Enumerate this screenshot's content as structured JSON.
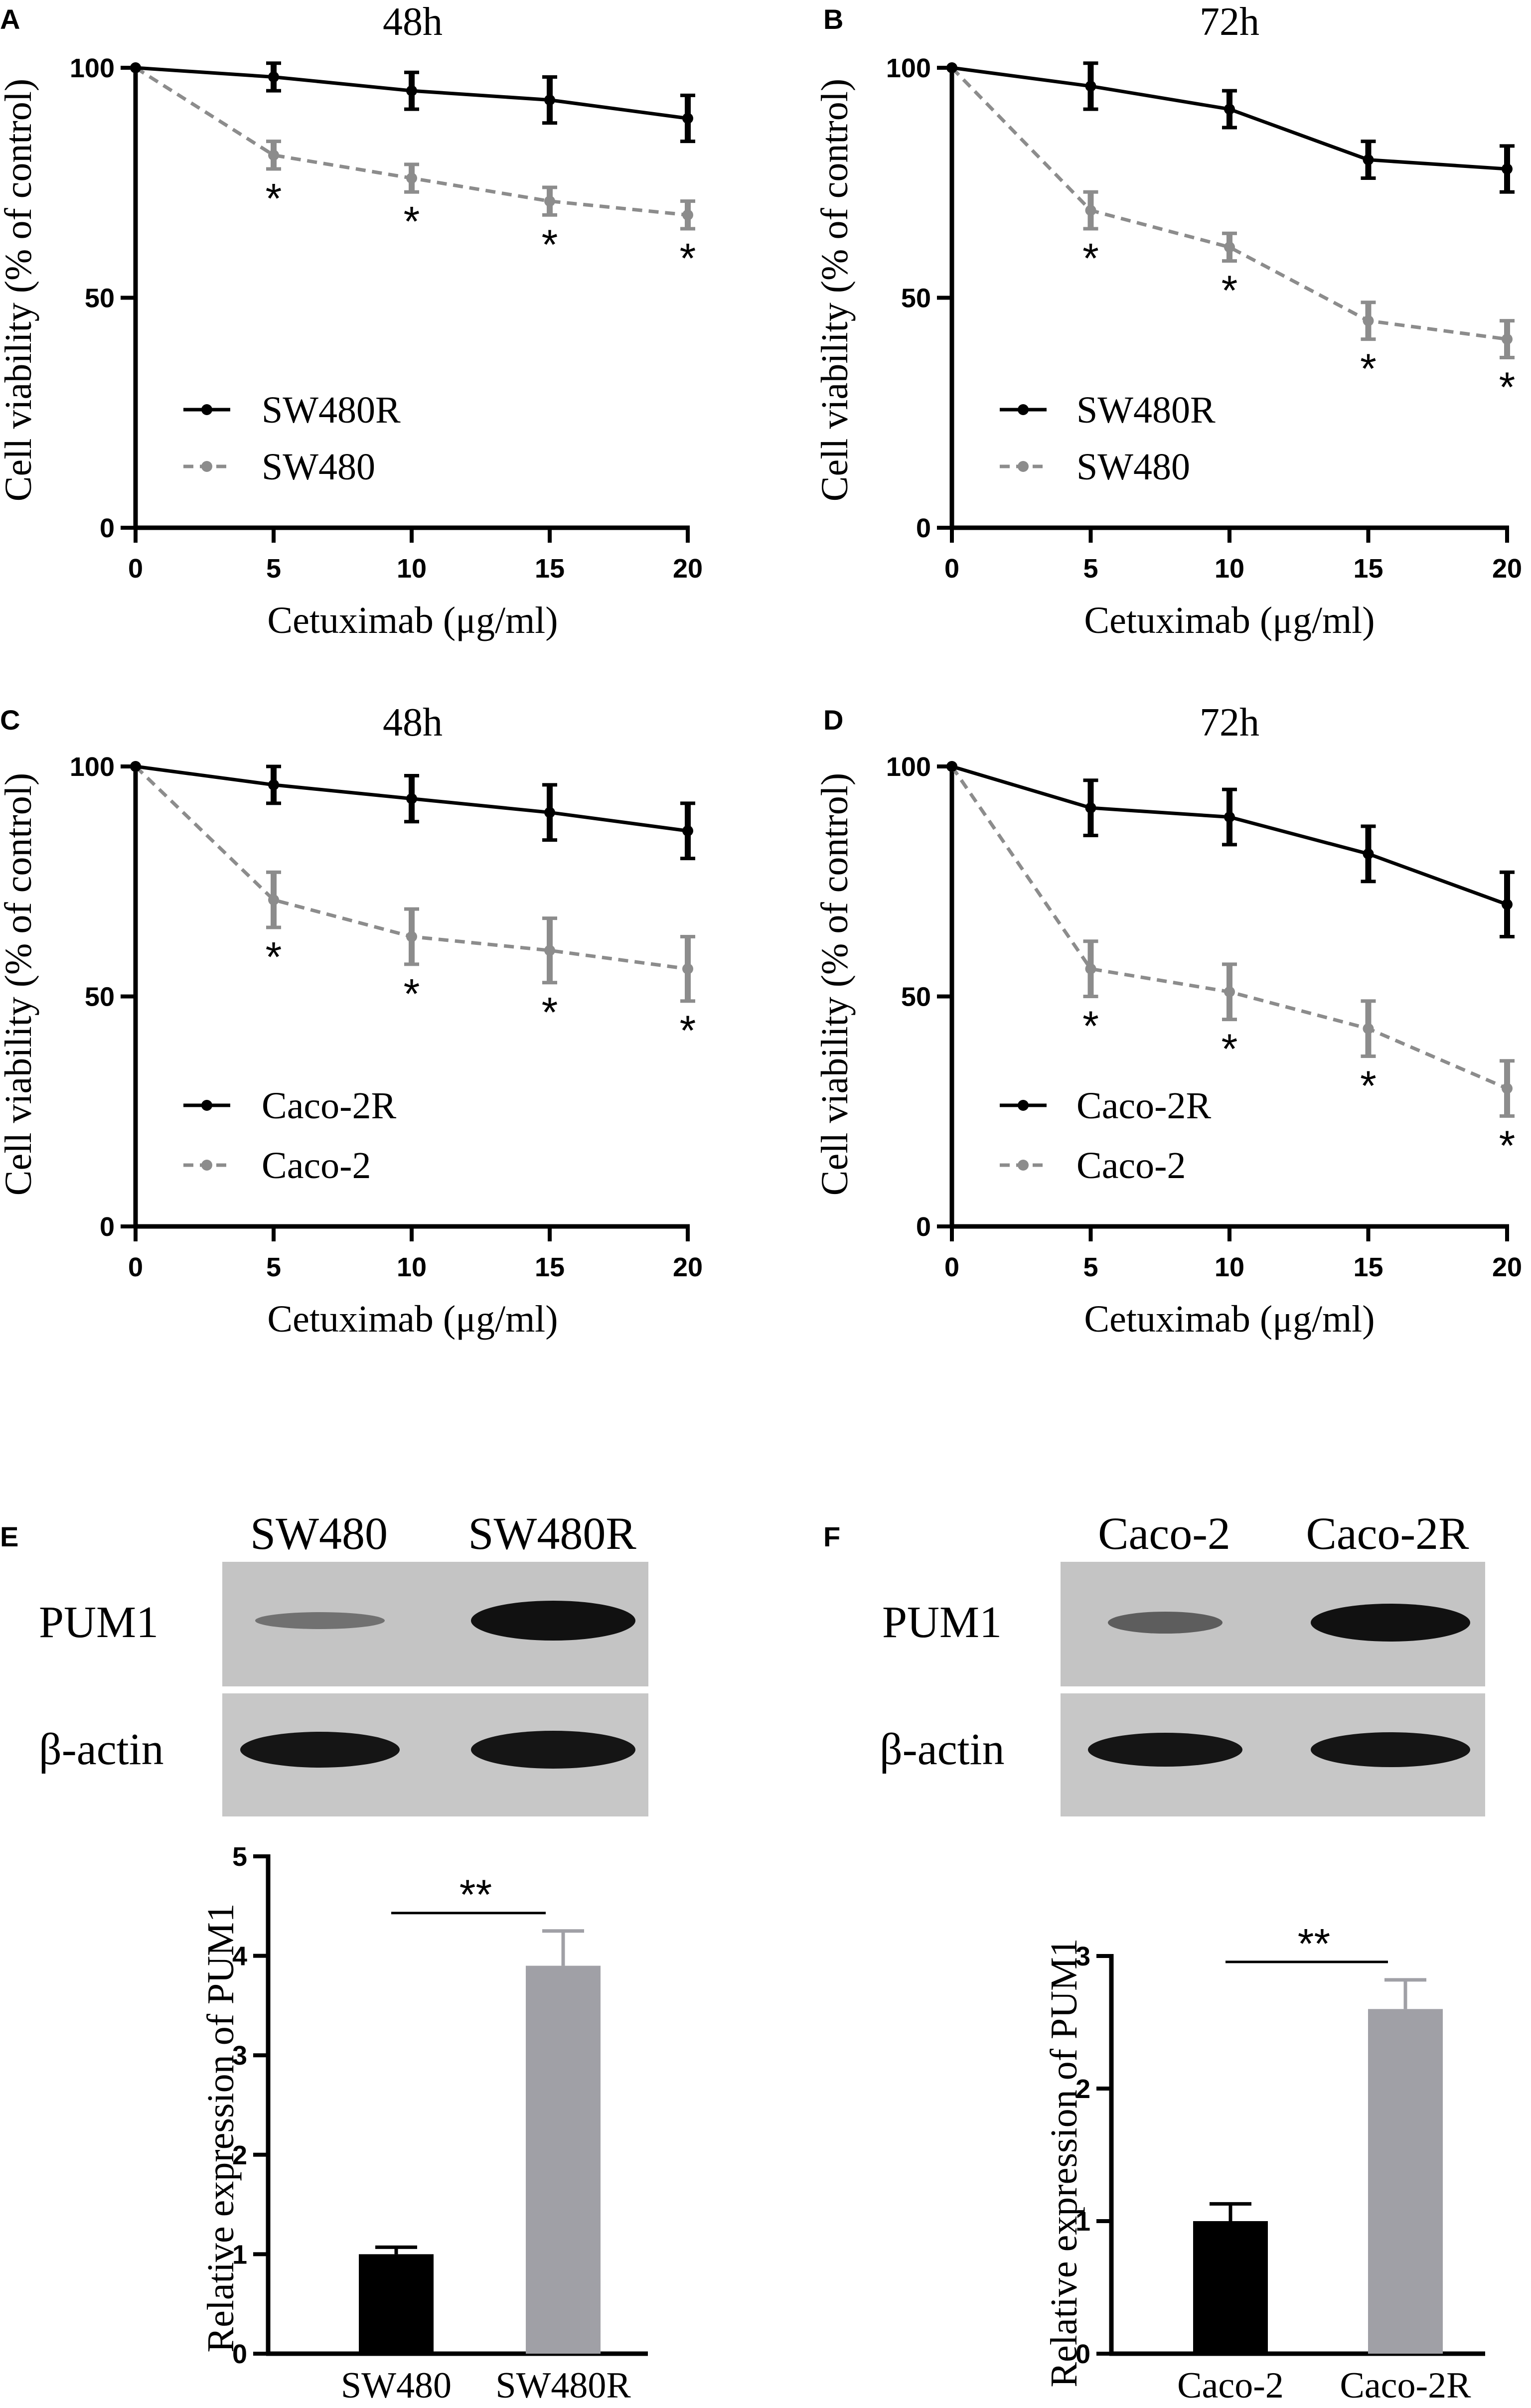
{
  "figure": {
    "lane_labels": {
      "E": [
        "SW480",
        "SW480R"
      ],
      "F": [
        "Caco-2",
        "Caco-2R"
      ]
    },
    "blot_row_labels": [
      "PUM1",
      "β-actin"
    ],
    "colors": {
      "black": "#000000",
      "gray": "#8c8c8c",
      "bar_gray": "#a0a0a6",
      "blot_bg": "#c4c4c4"
    }
  },
  "chart_data": [
    {
      "panel": "A",
      "type": "line",
      "title": "48h",
      "xlabel": "Cetuximab (μg/ml)",
      "ylabel": "Cell viability (% of control)",
      "x": [
        0,
        5,
        10,
        15,
        20
      ],
      "xticks": [
        "0",
        "5",
        "10",
        "15",
        "20"
      ],
      "yticks": [
        "0",
        "50",
        "100"
      ],
      "xlim": [
        0,
        20
      ],
      "ylim": [
        0,
        100
      ],
      "series": [
        {
          "name": "SW480R",
          "style": "solid",
          "values": [
            100,
            98,
            95,
            93,
            89
          ],
          "errors": [
            0,
            3,
            4,
            5,
            5
          ]
        },
        {
          "name": "SW480",
          "style": "dashed",
          "values": [
            100,
            81,
            76,
            71,
            68
          ],
          "errors": [
            0,
            3,
            3,
            3,
            3
          ]
        }
      ],
      "annotations": [
        {
          "x": 5,
          "text": "*"
        },
        {
          "x": 10,
          "text": "*"
        },
        {
          "x": 15,
          "text": "*"
        },
        {
          "x": 20,
          "text": "*"
        }
      ]
    },
    {
      "panel": "B",
      "type": "line",
      "title": "72h",
      "xlabel": "Cetuximab (μg/ml)",
      "ylabel": "Cell viability (% of control)",
      "x": [
        0,
        5,
        10,
        15,
        20
      ],
      "xticks": [
        "0",
        "5",
        "10",
        "15",
        "20"
      ],
      "yticks": [
        "0",
        "50",
        "100"
      ],
      "xlim": [
        0,
        20
      ],
      "ylim": [
        0,
        100
      ],
      "series": [
        {
          "name": "SW480R",
          "style": "solid",
          "values": [
            100,
            96,
            91,
            80,
            78
          ],
          "errors": [
            0,
            5,
            4,
            4,
            5
          ]
        },
        {
          "name": "SW480",
          "style": "dashed",
          "values": [
            100,
            69,
            61,
            45,
            41
          ],
          "errors": [
            0,
            4,
            3,
            4,
            4
          ]
        }
      ],
      "annotations": [
        {
          "x": 5,
          "text": "*"
        },
        {
          "x": 10,
          "text": "*"
        },
        {
          "x": 15,
          "text": "*"
        },
        {
          "x": 20,
          "text": "*"
        }
      ]
    },
    {
      "panel": "C",
      "type": "line",
      "title": "48h",
      "xlabel": "Cetuximab (μg/ml)",
      "ylabel": "Cell viability (% of control)",
      "x": [
        0,
        5,
        10,
        15,
        20
      ],
      "xticks": [
        "0",
        "5",
        "10",
        "15",
        "20"
      ],
      "yticks": [
        "0",
        "50",
        "100"
      ],
      "xlim": [
        0,
        20
      ],
      "ylim": [
        0,
        100
      ],
      "series": [
        {
          "name": "Caco-2R",
          "style": "solid",
          "values": [
            100,
            96,
            93,
            90,
            86
          ],
          "errors": [
            0,
            4,
            5,
            6,
            6
          ]
        },
        {
          "name": "Caco-2",
          "style": "dashed",
          "values": [
            100,
            71,
            63,
            60,
            56
          ],
          "errors": [
            0,
            6,
            6,
            7,
            7
          ]
        }
      ],
      "annotations": [
        {
          "x": 5,
          "text": "*"
        },
        {
          "x": 10,
          "text": "*"
        },
        {
          "x": 15,
          "text": "*"
        },
        {
          "x": 20,
          "text": "*"
        }
      ]
    },
    {
      "panel": "D",
      "type": "line",
      "title": "72h",
      "xlabel": "Cetuximab (μg/ml)",
      "ylabel": "Cell viability (% of control)",
      "x": [
        0,
        5,
        10,
        15,
        20
      ],
      "xticks": [
        "0",
        "5",
        "10",
        "15",
        "20"
      ],
      "yticks": [
        "0",
        "50",
        "100"
      ],
      "xlim": [
        0,
        20
      ],
      "ylim": [
        0,
        100
      ],
      "series": [
        {
          "name": "Caco-2R",
          "style": "solid",
          "values": [
            100,
            91,
            89,
            81,
            70
          ],
          "errors": [
            0,
            6,
            6,
            6,
            7
          ]
        },
        {
          "name": "Caco-2",
          "style": "dashed",
          "values": [
            100,
            56,
            51,
            43,
            30
          ],
          "errors": [
            0,
            6,
            6,
            6,
            6
          ]
        }
      ],
      "annotations": [
        {
          "x": 5,
          "text": "*"
        },
        {
          "x": 10,
          "text": "*"
        },
        {
          "x": 15,
          "text": "*"
        },
        {
          "x": 20,
          "text": "*"
        }
      ]
    },
    {
      "panel": "E",
      "type": "bar",
      "categories": [
        "SW480",
        "SW480R"
      ],
      "values": [
        1.0,
        3.9
      ],
      "errors": [
        0.07,
        0.35
      ],
      "ylabel": "Relative expression of PUM1",
      "ylim": [
        0,
        5
      ],
      "yticks": [
        "0",
        "1",
        "2",
        "3",
        "4",
        "5"
      ],
      "significance": "**"
    },
    {
      "panel": "F",
      "type": "bar",
      "categories": [
        "Caco-2",
        "Caco-2R"
      ],
      "values": [
        1.0,
        2.6
      ],
      "errors": [
        0.13,
        0.22
      ],
      "ylabel": "Relative expression of PUM1",
      "ylim": [
        0,
        3
      ],
      "yticks": [
        "0",
        "1",
        "2",
        "3"
      ],
      "significance": "**"
    }
  ]
}
